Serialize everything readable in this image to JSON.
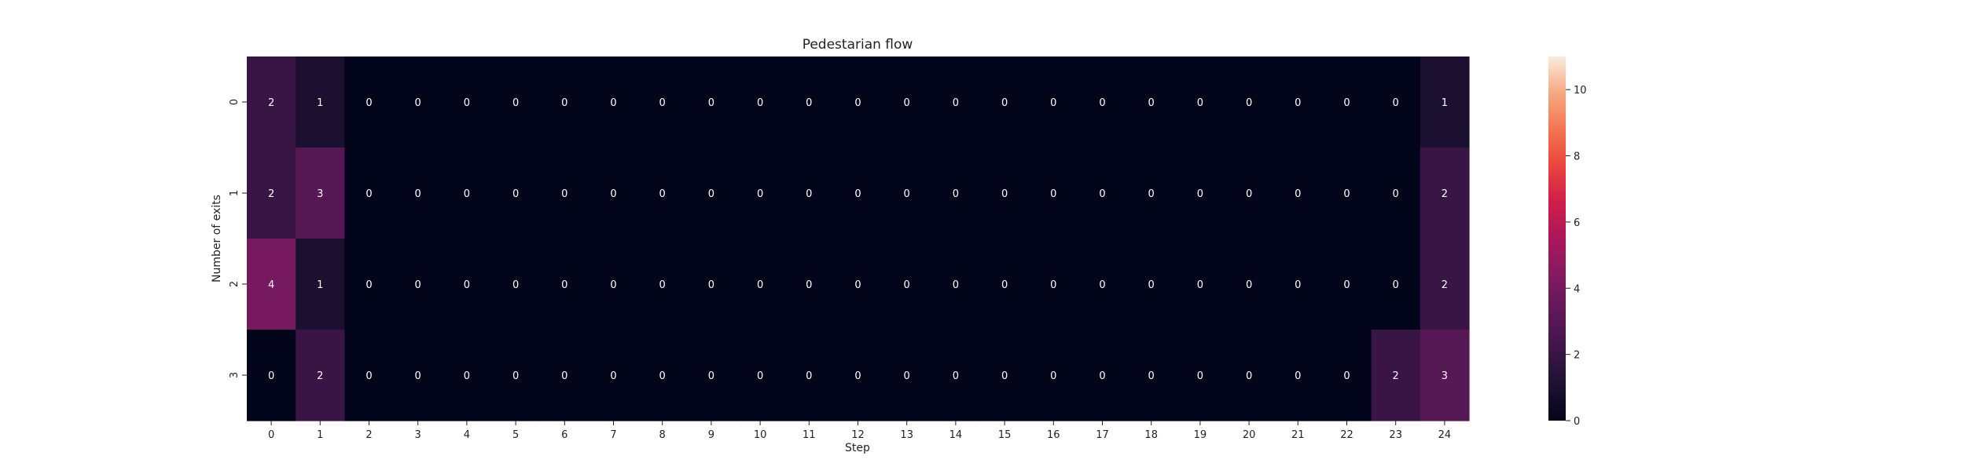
{
  "chart_data": {
    "type": "heatmap",
    "title": "Pedestarian flow",
    "xlabel": "Step",
    "ylabel": "Number of exits",
    "x_categories": [
      "0",
      "1",
      "2",
      "3",
      "4",
      "5",
      "6",
      "7",
      "8",
      "9",
      "10",
      "11",
      "12",
      "13",
      "14",
      "15",
      "16",
      "17",
      "18",
      "19",
      "20",
      "21",
      "22",
      "23",
      "24"
    ],
    "y_categories": [
      "0",
      "1",
      "2",
      "3"
    ],
    "values": [
      [
        2,
        1,
        0,
        0,
        0,
        0,
        0,
        0,
        0,
        0,
        0,
        0,
        0,
        0,
        0,
        0,
        0,
        0,
        0,
        0,
        0,
        0,
        0,
        0,
        1
      ],
      [
        2,
        3,
        0,
        0,
        0,
        0,
        0,
        0,
        0,
        0,
        0,
        0,
        0,
        0,
        0,
        0,
        0,
        0,
        0,
        0,
        0,
        0,
        0,
        0,
        2
      ],
      [
        4,
        1,
        0,
        0,
        0,
        0,
        0,
        0,
        0,
        0,
        0,
        0,
        0,
        0,
        0,
        0,
        0,
        0,
        0,
        0,
        0,
        0,
        0,
        0,
        2
      ],
      [
        0,
        2,
        0,
        0,
        0,
        0,
        0,
        0,
        0,
        0,
        0,
        0,
        0,
        0,
        0,
        0,
        0,
        0,
        0,
        0,
        0,
        0,
        0,
        2,
        3
      ]
    ],
    "colorbar": {
      "vmin": 0,
      "vmax": 11,
      "ticks": [
        "0",
        "2",
        "4",
        "6",
        "8",
        "10"
      ],
      "colormap": "rocket"
    },
    "annotations": true,
    "grid": false,
    "colors": {
      "low": "#03051a",
      "high": "#faebdd",
      "annotation_light": "#ffffff"
    }
  }
}
